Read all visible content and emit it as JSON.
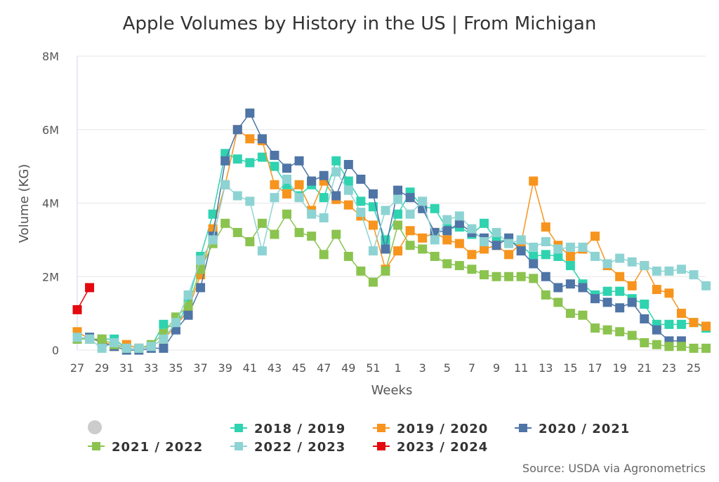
{
  "chart_data": {
    "type": "line",
    "title": "Apple Volumes by History in the US | From Michigan",
    "x_label": "Weeks",
    "y_label": "Volume (KG)",
    "source": "Source: USDA via Agronometrics",
    "categories": [
      "27",
      null,
      "29",
      null,
      "31",
      null,
      "33",
      null,
      "35",
      null,
      "37",
      null,
      "39",
      null,
      "41",
      null,
      "43",
      null,
      "45",
      null,
      "47",
      null,
      "49",
      null,
      "51",
      null,
      "1",
      null,
      "3",
      null,
      "5",
      null,
      "7",
      null,
      "9",
      null,
      "11",
      null,
      "13",
      null,
      "15",
      null,
      "17",
      null,
      "19",
      null,
      "21",
      null,
      "23",
      null,
      "25",
      null
    ],
    "ylim": [
      0,
      8000000.0
    ],
    "yticks": [
      {
        "value": 0,
        "label": "0"
      },
      {
        "value": 2000000.0,
        "label": "2M"
      },
      {
        "value": 4000000.0,
        "label": "4M"
      },
      {
        "value": 6000000.0,
        "label": "6M"
      },
      {
        "value": 8000000.0,
        "label": "8M"
      }
    ],
    "grid": true,
    "series": [
      {
        "name": "2018 / 2019",
        "color": "#2fd3b0",
        "values": [
          350000.0,
          300000.0,
          300000.0,
          300000.0,
          50000.0,
          50000.0,
          100000.0,
          700000.0,
          600000.0,
          1300000.0,
          2550000.0,
          3700000.0,
          5350000.0,
          5200000.0,
          5100000.0,
          5250000.0,
          5000000.0,
          4500000.0,
          4200000.0,
          4500000.0,
          4150000.0,
          5150000.0,
          4600000.0,
          4050000.0,
          3900000.0,
          3000000.0,
          3700000.0,
          4300000.0,
          3900000.0,
          3850000.0,
          3300000.0,
          3350000.0,
          3150000.0,
          3450000.0,
          3000000.0,
          2950000.0,
          2850000.0,
          2550000.0,
          2600000.0,
          2550000.0,
          2300000.0,
          1800000.0,
          1500000.0,
          1600000.0,
          1600000.0,
          1400000.0,
          1250000.0,
          700000.0,
          700000.0,
          700000.0,
          750000.0,
          600000.0
        ]
      },
      {
        "name": "2019 / 2020",
        "color": "#f7941d",
        "values": [
          500000.0,
          300000.0,
          250000.0,
          100000.0,
          150000.0,
          50000.0,
          100000.0,
          300000.0,
          650000.0,
          1100000.0,
          2050000.0,
          3300000.0,
          4500000.0,
          6000000.0,
          5750000.0,
          5700000.0,
          4500000.0,
          4250000.0,
          4500000.0,
          3800000.0,
          4600000.0,
          4100000.0,
          3950000.0,
          3650000.0,
          3400000.0,
          2200000.0,
          2700000.0,
          3250000.0,
          3050000.0,
          3200000.0,
          3000000.0,
          2900000.0,
          2600000.0,
          2750000.0,
          2850000.0,
          2600000.0,
          2900000.0,
          4600000.0,
          3350000.0,
          2850000.0,
          2550000.0,
          2750000.0,
          3100000.0,
          2300000.0,
          2000000.0,
          1750000.0,
          2300000.0,
          1650000.0,
          1550000.0,
          1000000.0,
          750000.0,
          650000.0
        ]
      },
      {
        "name": "2020 / 2021",
        "color": "#4f74a6",
        "values": [
          300000.0,
          350000.0,
          200000.0,
          100000.0,
          0,
          0,
          50000.0,
          50000.0,
          550000.0,
          950000.0,
          1700000.0,
          3100000.0,
          5150000.0,
          6000000.0,
          6450000.0,
          5750000.0,
          5300000.0,
          4950000.0,
          5150000.0,
          4600000.0,
          4750000.0,
          4200000.0,
          5050000.0,
          4650000.0,
          4250000.0,
          2750000.0,
          4350000.0,
          4150000.0,
          3850000.0,
          3200000.0,
          3250000.0,
          3450000.0,
          3200000.0,
          3050000.0,
          2850000.0,
          3050000.0,
          2700000.0,
          2350000.0,
          2000000.0,
          1700000.0,
          1800000.0,
          1700000.0,
          1400000.0,
          1300000.0,
          1150000.0,
          1300000.0,
          850000.0,
          550000.0,
          250000.0,
          250000.0,
          null,
          null
        ]
      },
      {
        "name": "2021 / 2022",
        "color": "#8bc34f",
        "values": [
          300000.0,
          300000.0,
          300000.0,
          150000.0,
          50000.0,
          50000.0,
          150000.0,
          450000.0,
          900000.0,
          1200000.0,
          2200000.0,
          2900000.0,
          3450000.0,
          3200000.0,
          2950000.0,
          3450000.0,
          3150000.0,
          3700000.0,
          3200000.0,
          3100000.0,
          2600000.0,
          3150000.0,
          2550000.0,
          2150000.0,
          1850000.0,
          2150000.0,
          3400000.0,
          2850000.0,
          2750000.0,
          2550000.0,
          2350000.0,
          2300000.0,
          2200000.0,
          2050000.0,
          2000000.0,
          2000000.0,
          2000000.0,
          1950000.0,
          1500000.0,
          1300000.0,
          1000000.0,
          950000.0,
          600000.0,
          550000.0,
          500000.0,
          400000.0,
          200000.0,
          150000.0,
          100000.0,
          100000.0,
          50000.0,
          50000.0
        ]
      },
      {
        "name": "2022 / 2023",
        "color": "#8ed3d3",
        "values": [
          350000.0,
          300000.0,
          50000.0,
          200000.0,
          50000.0,
          50000.0,
          100000.0,
          300000.0,
          750000.0,
          1500000.0,
          2450000.0,
          3000000.0,
          4500000.0,
          4200000.0,
          4050000.0,
          2700000.0,
          4150000.0,
          4650000.0,
          4150000.0,
          3700000.0,
          3600000.0,
          4850000.0,
          4350000.0,
          3750000.0,
          2700000.0,
          3800000.0,
          4100000.0,
          3700000.0,
          4050000.0,
          3000000.0,
          3550000.0,
          3650000.0,
          3300000.0,
          2950000.0,
          3200000.0,
          2900000.0,
          3000000.0,
          2800000.0,
          2950000.0,
          2750000.0,
          2800000.0,
          2800000.0,
          2550000.0,
          2350000.0,
          2500000.0,
          2400000.0,
          2300000.0,
          2150000.0,
          2150000.0,
          2200000.0,
          2050000.0,
          1750000.0
        ]
      },
      {
        "name": "2023 / 2024",
        "color": "#e3090f",
        "values": [
          1100000.0,
          1700000.0,
          null,
          null,
          null,
          null,
          null,
          null,
          null,
          null,
          null,
          null,
          null,
          null,
          null,
          null,
          null,
          null,
          null,
          null,
          null,
          null,
          null,
          null,
          null,
          null,
          null,
          null,
          null,
          null,
          null,
          null,
          null,
          null,
          null,
          null,
          null,
          null,
          null,
          null,
          null,
          null,
          null,
          null,
          null,
          null,
          null,
          null,
          null,
          null,
          null,
          null
        ]
      }
    ]
  }
}
